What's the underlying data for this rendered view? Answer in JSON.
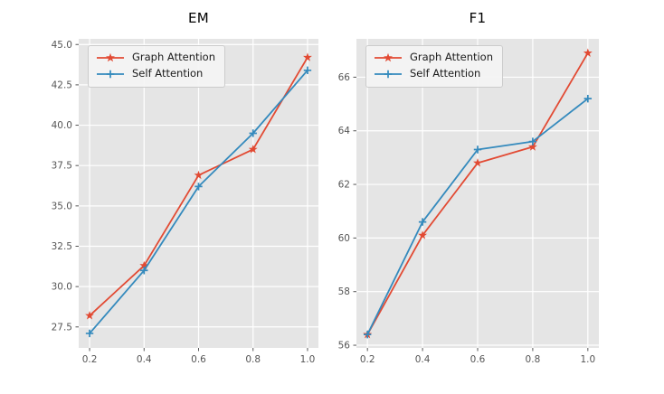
{
  "figure": {
    "background": "#ffffff"
  },
  "chart_data": [
    {
      "type": "line",
      "title": "EM",
      "x": [
        0.2,
        0.4,
        0.6,
        0.8,
        1.0
      ],
      "series": [
        {
          "name": "Graph Attention",
          "color": "#E24A33",
          "marker": "star",
          "values": [
            28.2,
            31.3,
            36.9,
            38.5,
            44.2
          ]
        },
        {
          "name": "Self Attention",
          "color": "#348ABD",
          "marker": "plus",
          "values": [
            27.1,
            31.0,
            36.2,
            39.5,
            43.4
          ]
        }
      ],
      "xlim": [
        0.16,
        1.04
      ],
      "ylim": [
        26.2,
        45.35
      ],
      "xticks": {
        "values": [
          0.2,
          0.4,
          0.6,
          0.8,
          1.0
        ],
        "labels": [
          "0.2",
          "0.4",
          "0.6",
          "0.8",
          "1.0"
        ]
      },
      "yticks": {
        "values": [
          27.5,
          30.0,
          32.5,
          35.0,
          37.5,
          40.0,
          42.5,
          45.0
        ],
        "labels": [
          "27.5",
          "30.0",
          "32.5",
          "35.0",
          "37.5",
          "40.0",
          "42.5",
          "45.0"
        ]
      },
      "grid": true,
      "legend_position": "upper-left",
      "style": {
        "plot_bg": "#E5E5E5",
        "grid_color": "#FFFFFF",
        "tick_color": "#555555"
      }
    },
    {
      "type": "line",
      "title": "F1",
      "x": [
        0.2,
        0.4,
        0.6,
        0.8,
        1.0
      ],
      "series": [
        {
          "name": "Graph Attention",
          "color": "#E24A33",
          "marker": "star",
          "values": [
            56.4,
            60.1,
            62.8,
            63.4,
            66.9
          ]
        },
        {
          "name": "Self Attention",
          "color": "#348ABD",
          "marker": "plus",
          "values": [
            56.4,
            60.6,
            63.3,
            63.6,
            65.2
          ]
        }
      ],
      "xlim": [
        0.16,
        1.04
      ],
      "ylim": [
        55.9,
        67.43
      ],
      "xticks": {
        "values": [
          0.2,
          0.4,
          0.6,
          0.8,
          1.0
        ],
        "labels": [
          "0.2",
          "0.4",
          "0.6",
          "0.8",
          "1.0"
        ]
      },
      "yticks": {
        "values": [
          56,
          58,
          60,
          62,
          64,
          66
        ],
        "labels": [
          "56",
          "58",
          "60",
          "62",
          "64",
          "66"
        ]
      },
      "grid": true,
      "legend_position": "upper-left",
      "style": {
        "plot_bg": "#E5E5E5",
        "grid_color": "#FFFFFF",
        "tick_color": "#555555"
      }
    }
  ]
}
